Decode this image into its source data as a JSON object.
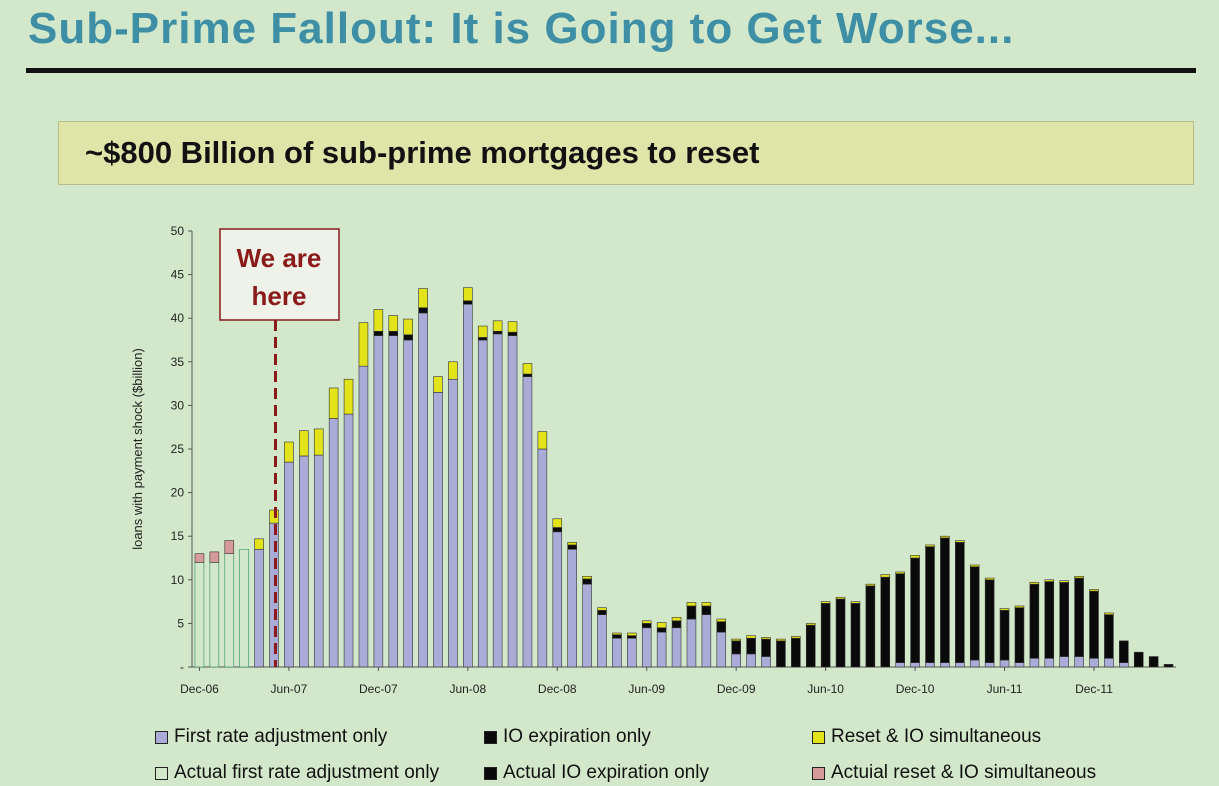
{
  "title": "Sub-Prime Fallout:  It is Going to Get Worse...",
  "subtitle": "~$800 Billion of sub-prime mortgages to reset",
  "chart_data": {
    "type": "bar",
    "stacked": true,
    "ylabel": "loans with payment shock ($billion)",
    "ylim": [
      0,
      50
    ],
    "yticks": [
      "-",
      "5",
      "10",
      "15",
      "20",
      "25",
      "30",
      "35",
      "40",
      "45",
      "50"
    ],
    "xtick_labels": [
      "Dec-06",
      "Jun-07",
      "Dec-07",
      "Jun-08",
      "Dec-08",
      "Jun-09",
      "Dec-09",
      "Jun-10",
      "Dec-10",
      "Jun-11",
      "Dec-11"
    ],
    "annotation": "We are here",
    "annotation_index": 5,
    "colors": {
      "first": "#a9acd6",
      "io": "#0a0a0a",
      "reset": "#e3e31a",
      "actual_first": "#d3e8ca",
      "actual_first_border": "#2e8b66",
      "actual_io": "#0a0a0a",
      "actual_reset": "#d69a9a",
      "marker": "#8b1a1a"
    },
    "series": [
      {
        "key": "first",
        "name": "First rate adjustment only",
        "values": [
          0,
          0,
          0,
          0,
          13.5,
          16.5,
          23.5,
          24.2,
          24.3,
          28.5,
          29,
          34.5,
          38,
          38,
          37.5,
          40.6,
          31.5,
          33,
          41.6,
          37.5,
          38.2,
          38,
          33.3,
          25,
          15.5,
          13.5,
          9.5,
          6,
          3.3,
          3.3,
          4.5,
          4,
          4.5,
          5.5,
          6,
          4,
          1.5,
          1.5,
          1.2,
          0,
          0,
          0,
          0,
          0,
          0,
          0,
          0,
          0.5,
          0.5,
          0.5,
          0.5,
          0.5,
          0.8,
          0.5,
          0.8,
          0.5,
          1,
          1,
          1.2,
          1.2,
          1,
          1,
          0.5,
          0,
          0,
          0
        ]
      },
      {
        "key": "io",
        "name": "IO expiration only",
        "values": [
          0,
          0,
          0,
          0,
          0,
          0,
          0,
          0,
          0,
          0,
          0,
          0,
          0.5,
          0.5,
          0.6,
          0.6,
          0,
          0,
          0.4,
          0.3,
          0.3,
          0.4,
          0.3,
          0,
          0.5,
          0.5,
          0.6,
          0.5,
          0.4,
          0.3,
          0.5,
          0.5,
          0.8,
          1.5,
          1,
          1.2,
          1.5,
          1.8,
          2,
          3,
          3.3,
          4.8,
          7.3,
          7.8,
          7.3,
          9.3,
          10.3,
          10.2,
          12,
          13.3,
          14.3,
          13.8,
          10.7,
          9.5,
          5.7,
          6.3,
          8.5,
          8.8,
          8.5,
          9,
          7.7,
          5,
          2.5,
          1.7,
          1.2,
          0.3
        ]
      },
      {
        "key": "reset",
        "name": "Reset & IO simultaneous",
        "values": [
          0,
          0,
          0,
          0,
          1.2,
          1.5,
          2.3,
          2.9,
          3,
          3.5,
          4,
          5,
          2.5,
          1.8,
          1.8,
          2.2,
          1.8,
          2,
          1.5,
          1.3,
          1.2,
          1.2,
          1.2,
          2,
          1,
          0.3,
          0.3,
          0.3,
          0.2,
          0.3,
          0.3,
          0.6,
          0.4,
          0.4,
          0.4,
          0.3,
          0.2,
          0.3,
          0.2,
          0.2,
          0.2,
          0.2,
          0.2,
          0.2,
          0.2,
          0.2,
          0.3,
          0.2,
          0.3,
          0.2,
          0.2,
          0.2,
          0.2,
          0.2,
          0.2,
          0.2,
          0.2,
          0.2,
          0.2,
          0.2,
          0.2,
          0.2,
          0,
          0,
          0,
          0
        ]
      },
      {
        "key": "actual_first",
        "name": "Actual first rate adjustment only",
        "values": [
          12,
          12,
          13,
          13.5,
          0,
          0,
          0,
          0,
          0,
          0,
          0,
          0,
          0,
          0,
          0,
          0,
          0,
          0,
          0,
          0,
          0,
          0,
          0,
          0,
          0,
          0,
          0,
          0,
          0,
          0,
          0,
          0,
          0,
          0,
          0,
          0,
          0,
          0,
          0,
          0,
          0,
          0,
          0,
          0,
          0,
          0,
          0,
          0,
          0,
          0,
          0,
          0,
          0,
          0,
          0,
          0,
          0,
          0,
          0,
          0,
          0,
          0,
          0,
          0,
          0,
          0
        ]
      },
      {
        "key": "actual_io",
        "name": "Actual IO expiration only",
        "values": [
          0,
          0,
          0,
          0,
          0,
          0,
          0,
          0,
          0,
          0,
          0,
          0,
          0,
          0,
          0,
          0,
          0,
          0,
          0,
          0,
          0,
          0,
          0,
          0,
          0,
          0,
          0,
          0,
          0,
          0,
          0,
          0,
          0,
          0,
          0,
          0,
          0,
          0,
          0,
          0,
          0,
          0,
          0,
          0,
          0,
          0,
          0,
          0,
          0,
          0,
          0,
          0,
          0,
          0,
          0,
          0,
          0,
          0,
          0,
          0,
          0,
          0,
          0,
          0,
          0,
          0
        ]
      },
      {
        "key": "actual_reset",
        "name": "Actuial reset & IO simultaneous",
        "values": [
          1,
          1.2,
          1.5,
          0,
          0,
          0,
          0,
          0,
          0,
          0,
          0,
          0,
          0,
          0,
          0,
          0,
          0,
          0,
          0,
          0,
          0,
          0,
          0,
          0,
          0,
          0,
          0,
          0,
          0,
          0,
          0,
          0,
          0,
          0,
          0,
          0,
          0,
          0,
          0,
          0,
          0,
          0,
          0,
          0,
          0,
          0,
          0,
          0,
          0,
          0,
          0,
          0,
          0,
          0,
          0,
          0,
          0,
          0,
          0,
          0,
          0,
          0,
          0,
          0,
          0,
          0
        ]
      }
    ],
    "legend": [
      {
        "label": "First rate adjustment only",
        "color": "#a9acd6"
      },
      {
        "label": "IO expiration only",
        "color": "#0a0a0a"
      },
      {
        "label": "Reset & IO simultaneous",
        "color": "#e3e31a"
      },
      {
        "label": "Actual first rate adjustment only",
        "color": "#d3e8ca"
      },
      {
        "label": "Actual IO expiration only",
        "color": "#0a0a0a"
      },
      {
        "label": "Actuial reset & IO simultaneous",
        "color": "#d69a9a"
      }
    ]
  }
}
